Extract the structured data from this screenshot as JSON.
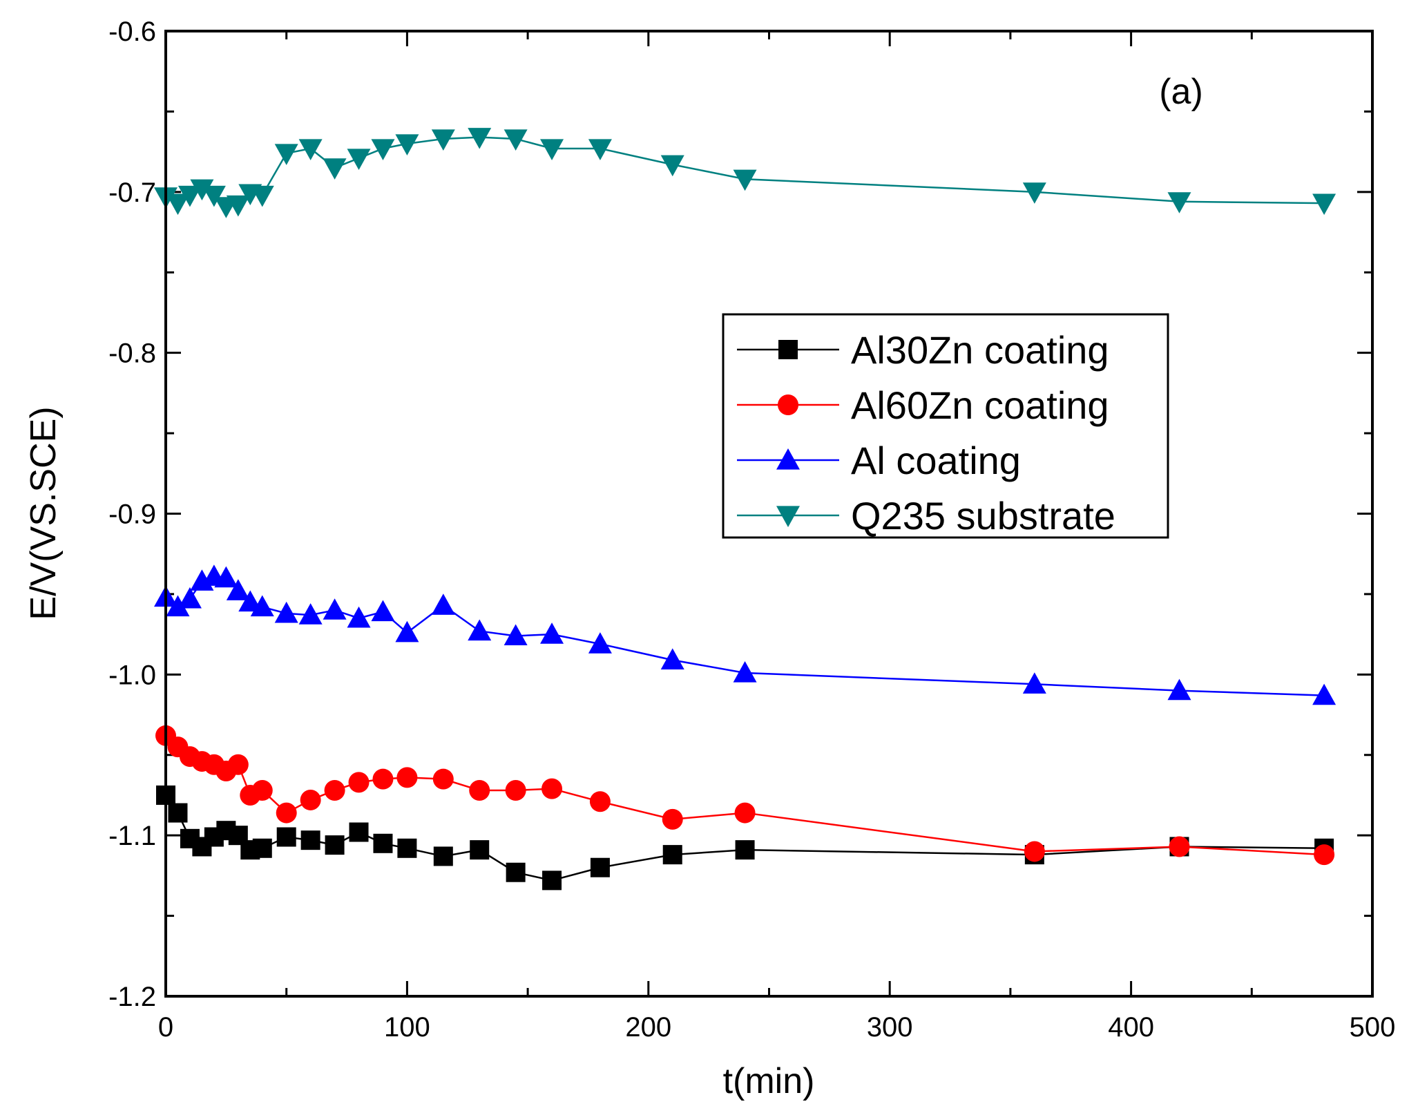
{
  "chart_data": {
    "type": "line",
    "title": "",
    "annotation": "(a)",
    "xlabel": "t(min)",
    "ylabel": "E/V(VS.SCE)",
    "xlim": [
      0,
      500
    ],
    "ylim": [
      -1.2,
      -0.6
    ],
    "x_ticks": [
      0,
      100,
      200,
      300,
      400,
      500
    ],
    "x_tick_labels": [
      "0",
      "100",
      "200",
      "300",
      "400",
      "500"
    ],
    "y_ticks": [
      -1.2,
      -1.1,
      -1.0,
      -0.9,
      -0.8,
      -0.7,
      -0.6
    ],
    "y_tick_labels": [
      "-1.2",
      "-1.1",
      "-1.0",
      "-0.9",
      "-0.8",
      "-0.7",
      "-0.6"
    ],
    "grid": false,
    "legend_position": "right-center",
    "series": [
      {
        "name": "Al30Zn coating",
        "color": "#000000",
        "marker": "square",
        "x": [
          0,
          5,
          10,
          15,
          20,
          25,
          30,
          35,
          40,
          50,
          60,
          70,
          80,
          90,
          100,
          115,
          130,
          145,
          160,
          180,
          210,
          240,
          360,
          420,
          480
        ],
        "y": [
          -1.075,
          -1.086,
          -1.102,
          -1.107,
          -1.101,
          -1.097,
          -1.1,
          -1.109,
          -1.108,
          -1.101,
          -1.103,
          -1.106,
          -1.098,
          -1.105,
          -1.108,
          -1.113,
          -1.109,
          -1.123,
          -1.128,
          -1.12,
          -1.112,
          -1.109,
          -1.112,
          -1.107,
          -1.108
        ]
      },
      {
        "name": "Al60Zn coating",
        "color": "#ff0000",
        "marker": "circle",
        "x": [
          0,
          5,
          10,
          15,
          20,
          25,
          30,
          35,
          40,
          50,
          60,
          70,
          80,
          90,
          100,
          115,
          130,
          145,
          160,
          180,
          210,
          240,
          360,
          420,
          480
        ],
        "y": [
          -1.038,
          -1.045,
          -1.051,
          -1.054,
          -1.056,
          -1.06,
          -1.056,
          -1.075,
          -1.072,
          -1.086,
          -1.078,
          -1.072,
          -1.067,
          -1.065,
          -1.064,
          -1.065,
          -1.072,
          -1.072,
          -1.071,
          -1.079,
          -1.09,
          -1.086,
          -1.11,
          -1.107,
          -1.112
        ]
      },
      {
        "name": "Al coating",
        "color": "#0000ff",
        "marker": "triangle-up",
        "x": [
          0,
          5,
          10,
          15,
          20,
          25,
          30,
          35,
          40,
          50,
          60,
          70,
          80,
          90,
          100,
          115,
          130,
          145,
          160,
          180,
          210,
          240,
          360,
          420,
          480
        ],
        "y": [
          -0.952,
          -0.958,
          -0.953,
          -0.942,
          -0.939,
          -0.94,
          -0.948,
          -0.955,
          -0.958,
          -0.962,
          -0.963,
          -0.96,
          -0.965,
          -0.961,
          -0.974,
          -0.957,
          -0.973,
          -0.976,
          -0.975,
          -0.981,
          -0.991,
          -0.999,
          -1.006,
          -1.01,
          -1.013
        ]
      },
      {
        "name": "Q235 substrate",
        "color": "#008080",
        "marker": "triangle-down",
        "x": [
          0,
          5,
          10,
          15,
          20,
          25,
          30,
          35,
          40,
          50,
          60,
          70,
          80,
          90,
          100,
          115,
          130,
          145,
          160,
          180,
          210,
          240,
          360,
          420,
          480
        ],
        "y": [
          -0.703,
          -0.707,
          -0.702,
          -0.698,
          -0.702,
          -0.709,
          -0.708,
          -0.701,
          -0.702,
          -0.676,
          -0.673,
          -0.685,
          -0.679,
          -0.673,
          -0.67,
          -0.667,
          -0.666,
          -0.667,
          -0.673,
          -0.673,
          -0.683,
          -0.692,
          -0.7,
          -0.706,
          -0.707
        ]
      }
    ]
  }
}
